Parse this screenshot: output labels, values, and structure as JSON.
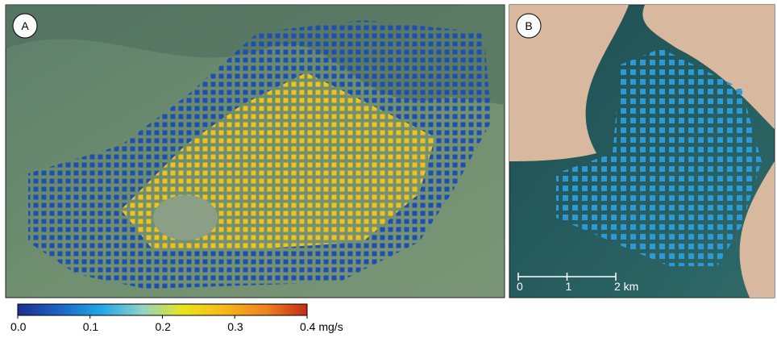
{
  "panels": [
    {
      "label": "A"
    },
    {
      "label": "B"
    }
  ],
  "scale_bar": {
    "lim": [
      0,
      2
    ],
    "ticks": [
      0,
      1,
      {
        "value": 2,
        "label": "2 km"
      }
    ]
  },
  "colorbar": {
    "lim": [
      0,
      0.4
    ],
    "ticks": [
      {
        "value": 0,
        "label": "0.0"
      },
      {
        "value": 0.1,
        "label": "0.1"
      },
      {
        "value": 0.2,
        "label": "0.2"
      },
      {
        "value": 0.3,
        "label": "0.3"
      },
      {
        "value": 0.4,
        "label": "0.4 mg/s"
      }
    ],
    "colors": [
      "#1c2f8f",
      "#1e62c4",
      "#20a7e6",
      "#8fd2c6",
      "#e8e51a",
      "#f7b719",
      "#ef8220",
      "#c62a18"
    ]
  }
}
